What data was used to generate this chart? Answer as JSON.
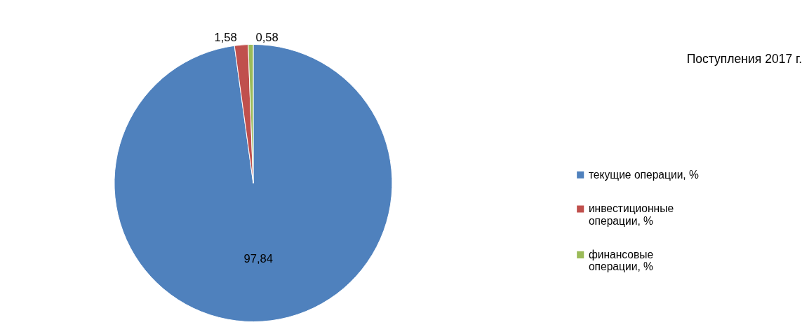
{
  "chart_data": {
    "type": "pie",
    "title": "Поступления 2017 г.",
    "categories": [
      "текущие операции, %",
      "инвестиционные операции, %",
      "финансовые операции, %"
    ],
    "values": [
      97.84,
      1.58,
      0.58
    ],
    "colors": [
      "#4f81bd",
      "#c0504d",
      "#9bbb59"
    ],
    "value_labels": [
      "97,84",
      "1,58",
      "0,58"
    ],
    "legend": "right"
  }
}
